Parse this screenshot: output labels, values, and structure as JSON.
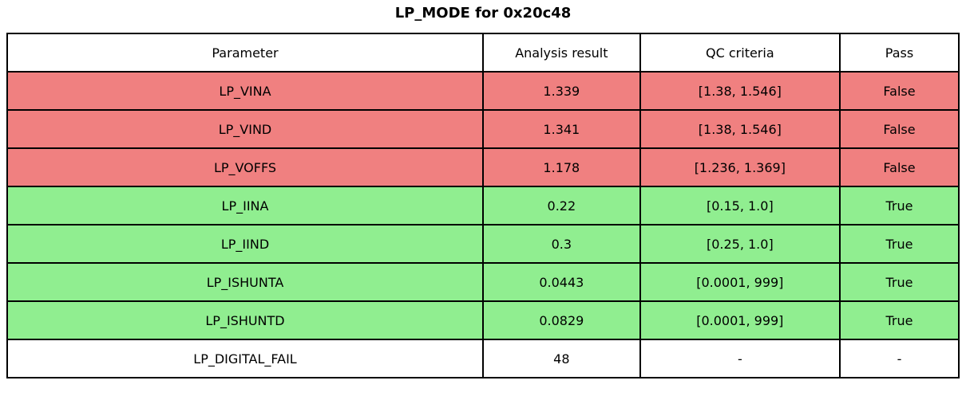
{
  "title": "LP_MODE for 0x20c48",
  "table": {
    "headers": [
      "Parameter",
      "Analysis result",
      "QC criteria",
      "Pass"
    ],
    "rows": [
      {
        "parameter": "LP_VINA",
        "result": "1.339",
        "criteria": "[1.38, 1.546]",
        "pass": "False",
        "status": "fail"
      },
      {
        "parameter": "LP_VIND",
        "result": "1.341",
        "criteria": "[1.38, 1.546]",
        "pass": "False",
        "status": "fail"
      },
      {
        "parameter": "LP_VOFFS",
        "result": "1.178",
        "criteria": "[1.236, 1.369]",
        "pass": "False",
        "status": "fail"
      },
      {
        "parameter": "LP_IINA",
        "result": "0.22",
        "criteria": "[0.15, 1.0]",
        "pass": "True",
        "status": "pass"
      },
      {
        "parameter": "LP_IIND",
        "result": "0.3",
        "criteria": "[0.25, 1.0]",
        "pass": "True",
        "status": "pass"
      },
      {
        "parameter": "LP_ISHUNTA",
        "result": "0.0443",
        "criteria": "[0.0001, 999]",
        "pass": "True",
        "status": "pass"
      },
      {
        "parameter": "LP_ISHUNTD",
        "result": "0.0829",
        "criteria": "[0.0001, 999]",
        "pass": "True",
        "status": "pass"
      },
      {
        "parameter": "LP_DIGITAL_FAIL",
        "result": "48",
        "criteria": "-",
        "pass": "-",
        "status": "neutral"
      }
    ]
  },
  "colors": {
    "fail_row": "#f08080",
    "pass_row": "#90ee90",
    "neutral_row": "#ffffff",
    "border": "#000000",
    "text": "#000000"
  },
  "chart_data": {
    "type": "table",
    "title": "LP_MODE for 0x20c48",
    "columns": [
      "Parameter",
      "Analysis result",
      "QC criteria",
      "Pass"
    ],
    "rows": [
      [
        "LP_VINA",
        1.339,
        "[1.38, 1.546]",
        "False"
      ],
      [
        "LP_VIND",
        1.341,
        "[1.38, 1.546]",
        "False"
      ],
      [
        "LP_VOFFS",
        1.178,
        "[1.236, 1.369]",
        "False"
      ],
      [
        "LP_IINA",
        0.22,
        "[0.15, 1.0]",
        "True"
      ],
      [
        "LP_IIND",
        0.3,
        "[0.25, 1.0]",
        "True"
      ],
      [
        "LP_ISHUNTA",
        0.0443,
        "[0.0001, 999]",
        "True"
      ],
      [
        "LP_ISHUNTD",
        0.0829,
        "[0.0001, 999]",
        "True"
      ],
      [
        "LP_DIGITAL_FAIL",
        48,
        "-",
        "-"
      ]
    ],
    "row_status": [
      "fail",
      "fail",
      "fail",
      "pass",
      "pass",
      "pass",
      "pass",
      "neutral"
    ],
    "legend_position": "none",
    "grid": true
  }
}
